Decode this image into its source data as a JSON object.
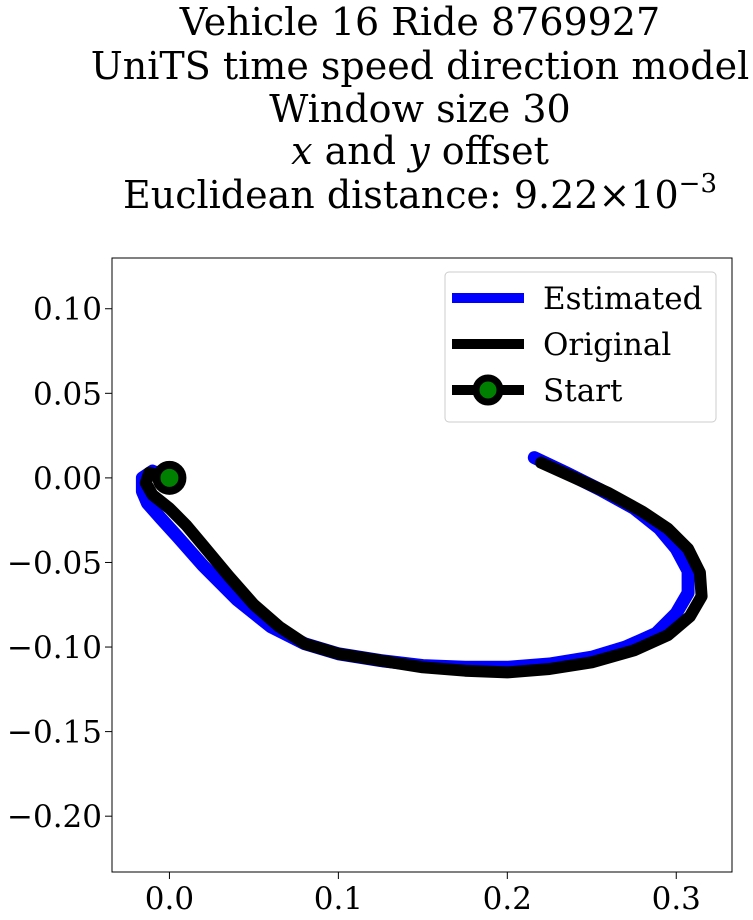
{
  "chart_data": {
    "type": "line",
    "title_lines": [
      "Vehicle 16 Ride 8769927",
      "UniTS time speed direction model",
      "Window size 30"
    ],
    "title_offset": {
      "x_var": "x",
      "and": " and ",
      "y_var": "y",
      "rest": " offset"
    },
    "title_distance": {
      "prefix": "Euclidean distance: 9.22",
      "times": "×",
      "base": "10",
      "exponent": "−3"
    },
    "xlim": [
      -0.034,
      0.333
    ],
    "ylim": [
      -0.233,
      0.13
    ],
    "xticks": [
      {
        "value": 0.0,
        "label": "0.0"
      },
      {
        "value": 0.1,
        "label": "0.1"
      },
      {
        "value": 0.2,
        "label": "0.2"
      },
      {
        "value": 0.3,
        "label": "0.3"
      }
    ],
    "yticks": [
      {
        "value": 0.1,
        "label": "0.10"
      },
      {
        "value": 0.05,
        "label": "0.05"
      },
      {
        "value": 0.0,
        "label": "0.00"
      },
      {
        "value": -0.05,
        "label": "−0.05"
      },
      {
        "value": -0.1,
        "label": "−0.10"
      },
      {
        "value": -0.15,
        "label": "−0.15"
      },
      {
        "value": -0.2,
        "label": "−0.20"
      }
    ],
    "grid": false,
    "legend_position": "upper right",
    "series": [
      {
        "name": "Estimated",
        "color": "#0000ff",
        "x": [
          0.0,
          -0.01,
          -0.016,
          -0.016,
          -0.013,
          -0.005,
          0.005,
          0.02,
          0.04,
          0.06,
          0.08,
          0.1,
          0.125,
          0.15,
          0.175,
          0.2,
          0.225,
          0.25,
          0.27,
          0.288,
          0.3,
          0.307,
          0.307,
          0.3,
          0.29,
          0.275,
          0.255,
          0.235,
          0.216
        ],
        "y": [
          0.0,
          0.004,
          0.0,
          -0.008,
          -0.015,
          -0.024,
          -0.035,
          -0.052,
          -0.072,
          -0.088,
          -0.098,
          -0.104,
          -0.108,
          -0.111,
          -0.112,
          -0.112,
          -0.11,
          -0.106,
          -0.1,
          -0.092,
          -0.08,
          -0.068,
          -0.055,
          -0.042,
          -0.03,
          -0.018,
          -0.007,
          0.003,
          0.012
        ]
      },
      {
        "name": "Original",
        "color": "#000000",
        "x": [
          0.0,
          -0.012,
          -0.014,
          -0.01,
          0.0,
          0.01,
          0.02,
          0.035,
          0.05,
          0.065,
          0.08,
          0.1,
          0.125,
          0.15,
          0.175,
          0.2,
          0.225,
          0.25,
          0.275,
          0.295,
          0.308,
          0.315,
          0.314,
          0.307,
          0.295,
          0.28,
          0.26,
          0.24,
          0.22
        ],
        "y": [
          0.0,
          0.003,
          -0.003,
          -0.01,
          -0.018,
          -0.028,
          -0.04,
          -0.058,
          -0.075,
          -0.088,
          -0.098,
          -0.104,
          -0.108,
          -0.112,
          -0.114,
          -0.115,
          -0.113,
          -0.109,
          -0.102,
          -0.093,
          -0.082,
          -0.07,
          -0.056,
          -0.042,
          -0.03,
          -0.02,
          -0.009,
          0.0,
          0.009
        ]
      },
      {
        "name": "Start",
        "color": "#000000",
        "marker_face": "#008000",
        "x": [
          0.0
        ],
        "y": [
          0.0
        ]
      }
    ]
  }
}
